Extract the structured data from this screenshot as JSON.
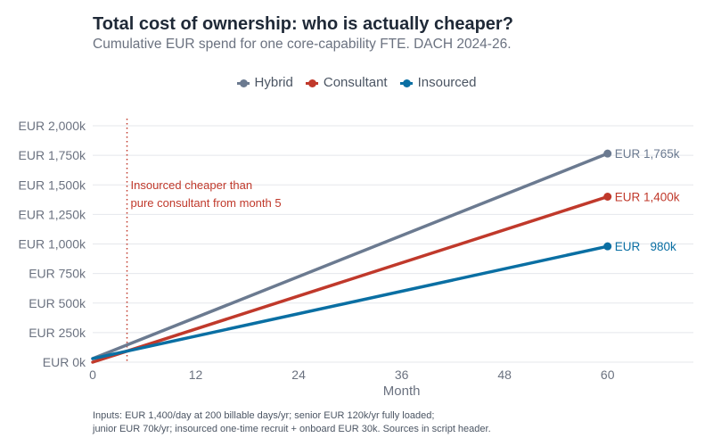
{
  "chart_data": {
    "type": "line",
    "title": "Total cost of ownership: who is actually cheaper?",
    "subtitle": "Cumulative EUR spend for one core-capability FTE. DACH 2024-26.",
    "xlabel": "Month",
    "ylabel": "",
    "xlim": [
      0,
      70
    ],
    "ylim": [
      0,
      2050
    ],
    "x_ticks": [
      0,
      12,
      24,
      36,
      48,
      60
    ],
    "y_ticks": [
      0,
      250,
      500,
      750,
      1000,
      1250,
      1500,
      1750,
      2000
    ],
    "y_tick_labels": [
      "EUR 0k",
      "EUR 250k",
      "EUR 500k",
      "EUR 750k",
      "EUR 1,000k",
      "EUR 1,250k",
      "EUR 1,500k",
      "EUR 1,750k",
      "EUR 2,000k"
    ],
    "grid": true,
    "legend_position": "top-center",
    "series": [
      {
        "name": "Hybrid",
        "color": "#6b7a90",
        "x": [
          0,
          60
        ],
        "y": [
          30,
          1765
        ],
        "end_label": "EUR 1,765k"
      },
      {
        "name": "Consultant",
        "color": "#c0392b",
        "x": [
          0,
          60
        ],
        "y": [
          0,
          1400
        ],
        "end_label": "EUR 1,400k"
      },
      {
        "name": "Insourced",
        "color": "#0a6fa3",
        "x": [
          0,
          60
        ],
        "y": [
          30,
          980
        ],
        "end_label": "EUR   980k"
      }
    ],
    "annotations": [
      {
        "x": 4,
        "style": "dotted-vertical",
        "color": "#c0392b",
        "text": [
          "Insourced cheaper than",
          "pure consultant from month 5"
        ]
      }
    ]
  },
  "footnote": [
    "Inputs: EUR 1,400/day at 200 billable days/yr; senior EUR 120k/yr fully loaded;",
    "junior EUR 70k/yr; insourced one-time recruit + onboard EUR 30k. Sources in script header."
  ]
}
